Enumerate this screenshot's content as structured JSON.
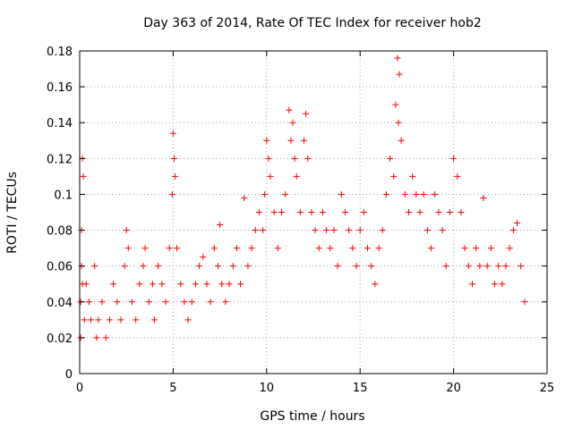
{
  "chart_data": {
    "type": "scatter",
    "title": "Day 363 of 2014, Rate Of TEC Index for receiver hob2",
    "xlabel": "GPS time / hours",
    "ylabel": "ROTI / TECUs",
    "xlim": [
      0,
      25
    ],
    "ylim": [
      0,
      0.18
    ],
    "xticks": [
      0,
      5,
      10,
      15,
      20,
      25
    ],
    "yticks": [
      0,
      0.02,
      0.04,
      0.06,
      0.08,
      0.1,
      0.12,
      0.14,
      0.16,
      0.18
    ],
    "ytick_labels": [
      "0",
      "0.02",
      "0.04",
      "0.06",
      "0.08",
      "0.1",
      "0.12",
      "0.14",
      "0.16",
      "0.18"
    ],
    "grid": true,
    "marker": "+",
    "color": "#ff0000",
    "series": [
      {
        "x": [
          0.05,
          0.1,
          0.15,
          0.2,
          0.1,
          0.05,
          0.15,
          0.25,
          0.35,
          0.5,
          0.6,
          0.8,
          0.9,
          1.0,
          1.2,
          1.4,
          1.6,
          1.8,
          2.0,
          2.2,
          2.4,
          2.5,
          2.6,
          2.8,
          3.0,
          3.2,
          3.4,
          3.5,
          3.7,
          3.9,
          4.0,
          4.2,
          4.4,
          4.6,
          4.8,
          4.95,
          5.0,
          5.05,
          5.1,
          5.2,
          5.4,
          5.6,
          5.8,
          6.0,
          6.2,
          6.4,
          6.6,
          6.8,
          7.0,
          7.2,
          7.4,
          7.5,
          7.6,
          7.8,
          8.0,
          8.2,
          8.4,
          8.6,
          8.8,
          9.0,
          9.2,
          9.4,
          9.6,
          9.8,
          9.9,
          10.0,
          10.1,
          10.2,
          10.4,
          10.6,
          10.8,
          11.0,
          11.2,
          11.3,
          11.4,
          11.5,
          11.6,
          11.8,
          12.0,
          12.1,
          12.2,
          12.4,
          12.6,
          12.8,
          13.0,
          13.2,
          13.4,
          13.6,
          13.8,
          14.0,
          14.2,
          14.4,
          14.6,
          14.8,
          15.0,
          15.2,
          15.4,
          15.6,
          15.8,
          16.0,
          16.2,
          16.4,
          16.6,
          16.8,
          16.9,
          17.0,
          17.05,
          17.1,
          17.2,
          17.4,
          17.6,
          17.8,
          18.0,
          18.2,
          18.4,
          18.6,
          18.8,
          19.0,
          19.2,
          19.4,
          19.6,
          19.8,
          20.0,
          20.2,
          20.4,
          20.6,
          20.8,
          21.0,
          21.2,
          21.4,
          21.6,
          21.8,
          22.0,
          22.2,
          22.4,
          22.6,
          22.8,
          23.0,
          23.2,
          23.4,
          23.6,
          23.8
        ],
        "y": [
          0.02,
          0.08,
          0.12,
          0.11,
          0.06,
          0.04,
          0.05,
          0.03,
          0.05,
          0.04,
          0.03,
          0.06,
          0.02,
          0.03,
          0.04,
          0.02,
          0.03,
          0.05,
          0.04,
          0.03,
          0.06,
          0.08,
          0.07,
          0.04,
          0.03,
          0.05,
          0.06,
          0.07,
          0.04,
          0.05,
          0.03,
          0.06,
          0.05,
          0.04,
          0.07,
          0.1,
          0.134,
          0.12,
          0.11,
          0.07,
          0.05,
          0.04,
          0.03,
          0.04,
          0.05,
          0.06,
          0.065,
          0.05,
          0.04,
          0.07,
          0.06,
          0.083,
          0.05,
          0.04,
          0.05,
          0.06,
          0.07,
          0.05,
          0.098,
          0.06,
          0.07,
          0.08,
          0.09,
          0.08,
          0.1,
          0.13,
          0.12,
          0.11,
          0.09,
          0.07,
          0.09,
          0.1,
          0.147,
          0.13,
          0.14,
          0.12,
          0.11,
          0.09,
          0.13,
          0.145,
          0.12,
          0.09,
          0.08,
          0.07,
          0.09,
          0.08,
          0.07,
          0.08,
          0.06,
          0.1,
          0.09,
          0.08,
          0.07,
          0.06,
          0.08,
          0.09,
          0.07,
          0.06,
          0.05,
          0.07,
          0.08,
          0.1,
          0.12,
          0.11,
          0.15,
          0.176,
          0.14,
          0.167,
          0.13,
          0.1,
          0.09,
          0.11,
          0.1,
          0.09,
          0.1,
          0.08,
          0.07,
          0.1,
          0.09,
          0.08,
          0.06,
          0.09,
          0.12,
          0.11,
          0.09,
          0.07,
          0.06,
          0.05,
          0.07,
          0.06,
          0.098,
          0.06,
          0.07,
          0.05,
          0.06,
          0.05,
          0.06,
          0.07,
          0.08,
          0.084,
          0.06,
          0.04
        ]
      }
    ]
  }
}
